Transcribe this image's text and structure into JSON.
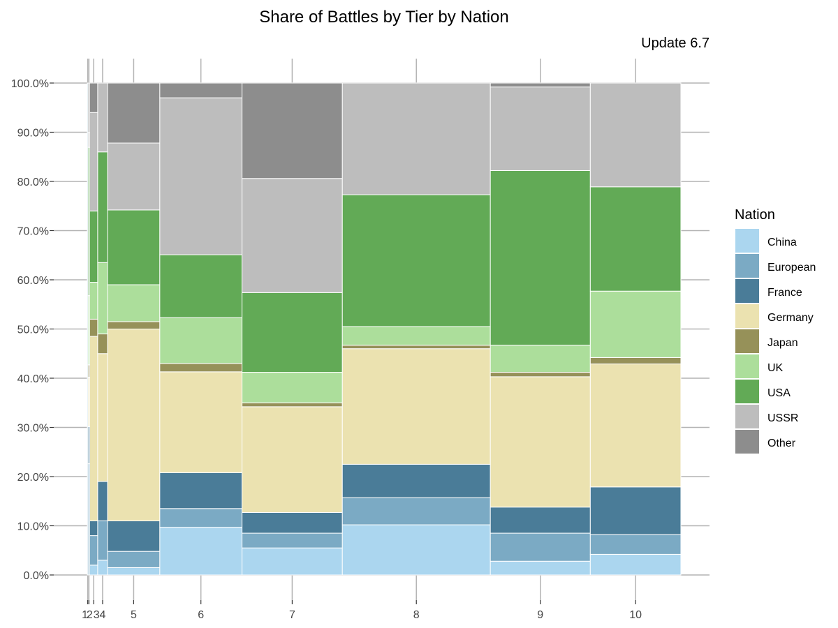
{
  "chart_data": {
    "type": "mosaic",
    "title": "Share of Battles by Tier by Nation",
    "subtitle": "Update 6.7",
    "legend_title": "Nation",
    "legend_position": "right",
    "grid": true,
    "ylim": [
      0,
      1
    ],
    "y_ticks": [
      "0.0%",
      "10.0%",
      "20.0%",
      "30.0%",
      "40.0%",
      "50.0%",
      "60.0%",
      "70.0%",
      "80.0%",
      "90.0%",
      "100.0%"
    ],
    "nations": [
      "China",
      "European",
      "France",
      "Germany",
      "Japan",
      "UK",
      "USA",
      "USSR",
      "Other"
    ],
    "colors": {
      "China": "#abd6ef",
      "European": "#7baac4",
      "France": "#4a7c98",
      "Germany": "#ebe2b0",
      "Japan": "#969159",
      "UK": "#acde9b",
      "USA": "#62aa56",
      "USSR": "#bdbdbd",
      "Other": "#8d8d8d"
    },
    "tiers": [
      {
        "label": "1",
        "width_share": 0.0015,
        "shares": [
          0,
          0.005,
          0,
          0,
          0,
          0,
          0,
          0,
          0
        ]
      },
      {
        "label": "2",
        "width_share": 0.0025,
        "shares": [
          0,
          0.225,
          0.075,
          0.1,
          0.025,
          0.14,
          0.3,
          0.03,
          0.1
        ]
      },
      {
        "label": "3",
        "width_share": 0.0135,
        "shares": [
          0.02,
          0.06,
          0.03,
          0.375,
          0.035,
          0.075,
          0.145,
          0.2,
          0.06
        ]
      },
      {
        "label": "4",
        "width_share": 0.0165,
        "shares": [
          0.03,
          0.08,
          0.08,
          0.26,
          0.04,
          0.145,
          0.225,
          0.14,
          0
        ]
      },
      {
        "label": "5",
        "width_share": 0.0878,
        "shares": [
          0.015,
          0.033,
          0.062,
          0.39,
          0.015,
          0.075,
          0.152,
          0.136,
          0.122
        ]
      },
      {
        "label": "6",
        "width_share": 0.1381,
        "shares": [
          0.097,
          0.038,
          0.073,
          0.205,
          0.017,
          0.093,
          0.128,
          0.319,
          0.03
        ]
      },
      {
        "label": "7",
        "width_share": 0.1685,
        "shares": [
          0.055,
          0.03,
          0.042,
          0.215,
          0.008,
          0.062,
          0.162,
          0.232,
          0.194
        ]
      },
      {
        "label": "8",
        "width_share": 0.2486,
        "shares": [
          0.102,
          0.055,
          0.068,
          0.235,
          0.007,
          0.038,
          0.268,
          0.227,
          0
        ]
      },
      {
        "label": "9",
        "width_share": 0.1679,
        "shares": [
          0.028,
          0.057,
          0.053,
          0.265,
          0.009,
          0.055,
          0.355,
          0.17,
          0.008
        ]
      },
      {
        "label": "10",
        "width_share": 0.1521,
        "shares": [
          0.042,
          0.04,
          0.097,
          0.25,
          0.013,
          0.135,
          0.212,
          0.211,
          0
        ]
      }
    ]
  }
}
